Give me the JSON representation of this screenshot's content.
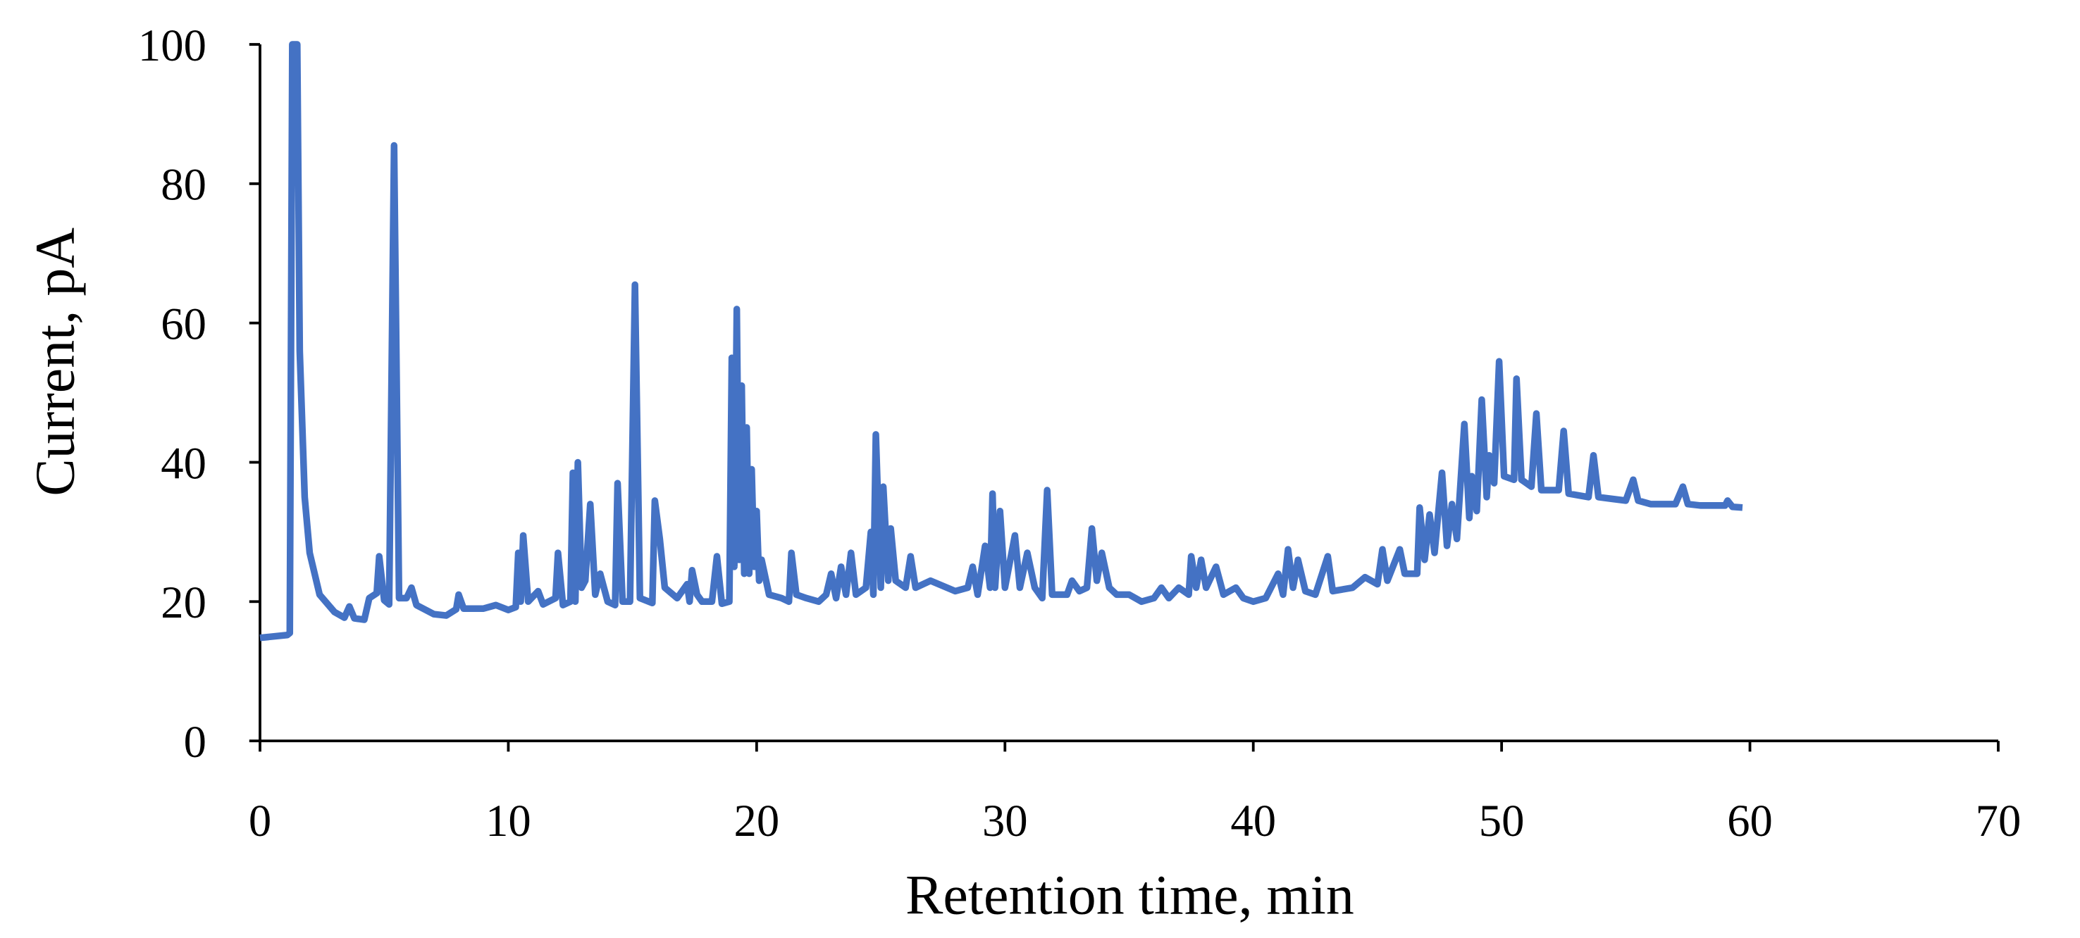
{
  "chart_data": {
    "type": "line",
    "xlabel": "Retention time, min",
    "ylabel": "Current, pA",
    "xlim": [
      0,
      70
    ],
    "ylim": [
      0,
      100
    ],
    "xticks": [
      0,
      10,
      20,
      30,
      40,
      50,
      60,
      70
    ],
    "yticks": [
      0,
      20,
      40,
      60,
      80,
      100
    ],
    "grid": false,
    "x": [
      0,
      1.1,
      1.2,
      1.3,
      1.5,
      1.6,
      1.8,
      2.0,
      2.4,
      3.0,
      3.4,
      3.6,
      3.8,
      4.2,
      4.4,
      4.7,
      4.8,
      5.0,
      5.2,
      5.4,
      5.6,
      5.9,
      6.1,
      6.3,
      7,
      7.5,
      7.9,
      8.0,
      8.2,
      9,
      9.5,
      10,
      10.3,
      10.4,
      10.5,
      10.6,
      10.8,
      11.2,
      11.4,
      11.9,
      12.0,
      12.2,
      12.5,
      12.6,
      12.7,
      12.8,
      12.95,
      13.1,
      13.3,
      13.5,
      13.7,
      14.0,
      14.3,
      14.4,
      14.6,
      14.9,
      15.1,
      15.3,
      15.8,
      15.9,
      16.1,
      16.3,
      16.8,
      17.2,
      17.3,
      17.4,
      17.6,
      17.8,
      18.2,
      18.4,
      18.6,
      18.9,
      19.0,
      19.1,
      19.2,
      19.3,
      19.4,
      19.5,
      19.6,
      19.7,
      19.8,
      19.9,
      20.0,
      20.1,
      20.2,
      20.5,
      21,
      21.3,
      21.4,
      21.6,
      22,
      22.5,
      22.8,
      23.0,
      23.2,
      23.4,
      23.6,
      23.8,
      24.0,
      24.4,
      24.6,
      24.7,
      24.8,
      25.0,
      25.1,
      25.3,
      25.4,
      25.6,
      26.0,
      26.2,
      26.4,
      27,
      28,
      28.5,
      28.7,
      28.9,
      29.2,
      29.4,
      29.5,
      29.6,
      29.8,
      30.0,
      30.4,
      30.6,
      30.9,
      31.2,
      31.5,
      31.7,
      31.9,
      32.5,
      32.7,
      33,
      33.3,
      33.5,
      33.7,
      33.9,
      34.2,
      34.5,
      35,
      35.5,
      36,
      36.3,
      36.6,
      37,
      37.4,
      37.5,
      37.7,
      37.9,
      38.1,
      38.5,
      38.8,
      39.3,
      39.6,
      40,
      40.5,
      41.0,
      41.2,
      41.4,
      41.6,
      41.8,
      42.1,
      42.5,
      43.0,
      43.2,
      44,
      44.5,
      45,
      45.2,
      45.4,
      45.9,
      46.1,
      46.6,
      46.7,
      46.9,
      47.1,
      47.3,
      47.6,
      47.8,
      48.0,
      48.2,
      48.5,
      48.7,
      48.8,
      49.0,
      49.2,
      49.4,
      49.5,
      49.7,
      49.9,
      50.1,
      50.5,
      50.6,
      50.8,
      51.2,
      51.4,
      51.6,
      52.3,
      52.5,
      52.7,
      53.5,
      53.7,
      53.9,
      55,
      55.3,
      55.5,
      56,
      57,
      57.3,
      57.5,
      58,
      59,
      59.1,
      59.3,
      59.7
    ],
    "series": [
      {
        "color": "#4472c4",
        "values": [
          14.8,
          15.2,
          15.5,
          100,
          100,
          56,
          35,
          27,
          21,
          18.5,
          17.7,
          19.3,
          17.6,
          17.4,
          20.5,
          21.2,
          26.5,
          20.2,
          19.6,
          85.5,
          20.5,
          20.5,
          22,
          19.5,
          18.2,
          18,
          18.9,
          21,
          19,
          19,
          19.5,
          18.8,
          19.2,
          27,
          20,
          29.5,
          20,
          21.5,
          19.6,
          20.5,
          27,
          19.5,
          20,
          38.5,
          20,
          40,
          22,
          23,
          34,
          21,
          24,
          20,
          19.5,
          37,
          20,
          20,
          65.5,
          20.5,
          19.8,
          34.5,
          29,
          22,
          20.5,
          22.5,
          20,
          24.5,
          21,
          20,
          20,
          26.5,
          19.7,
          20,
          55,
          25,
          62,
          26,
          51,
          24,
          45,
          24,
          39,
          25,
          33,
          23,
          26,
          21,
          20.5,
          20,
          27,
          21,
          20.5,
          20,
          21,
          24,
          20.5,
          25,
          21,
          27,
          21,
          22,
          30,
          21,
          44,
          22,
          36.5,
          23,
          30.5,
          23,
          22,
          26.5,
          22,
          23,
          21.5,
          22,
          25,
          21,
          28,
          22,
          35.5,
          22,
          33,
          22,
          29.5,
          22,
          27,
          22,
          20.5,
          36,
          21,
          21,
          23,
          21.5,
          22,
          30.5,
          23,
          27,
          22,
          21,
          21,
          20,
          20.5,
          22,
          20.5,
          22,
          21,
          26.5,
          22,
          26,
          22,
          25,
          21,
          22,
          20.5,
          20,
          20.5,
          24,
          21,
          27.5,
          22,
          26,
          21.5,
          21,
          26.5,
          21.5,
          22,
          23.5,
          22.5,
          27.5,
          23,
          27.5,
          24,
          24,
          33.5,
          26,
          32.5,
          27,
          38.5,
          28,
          34,
          29,
          45.5,
          32,
          38,
          33,
          49,
          35,
          41,
          37,
          54.5,
          38,
          37.5,
          52,
          37.5,
          36.5,
          47,
          36,
          36,
          44.5,
          35.5,
          35,
          41,
          35,
          34.5,
          37.5,
          34.5,
          34,
          34,
          36.5,
          34,
          33.8,
          33.8,
          34.5,
          33.6,
          33.5
        ]
      }
    ]
  }
}
